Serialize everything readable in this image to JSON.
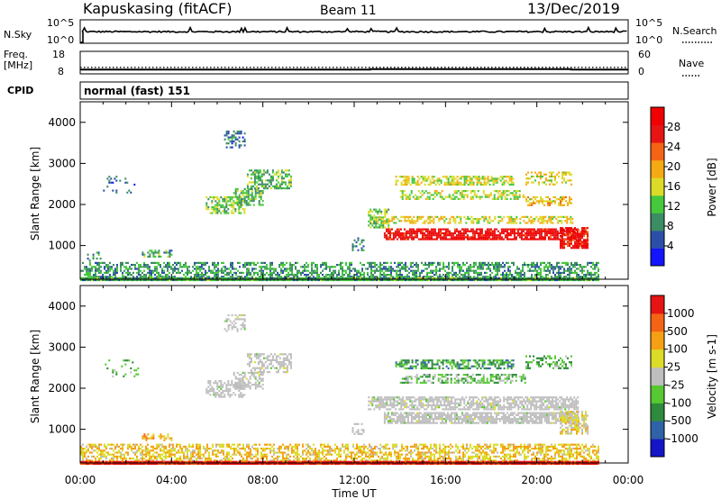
{
  "header": {
    "station": "Kapuskasing (fitACF)",
    "beam": "Beam 11",
    "date": "13/Dec/2019"
  },
  "noise_panel": {
    "left_label": "N.Sky",
    "right_label": "N.Search",
    "left_ticks": [
      "10^5",
      "10^0"
    ],
    "right_ticks": [
      "10^5",
      "10^0"
    ]
  },
  "freq_panel": {
    "left_label_top": "Freq.",
    "left_label_unit": "[MHz]",
    "right_label": "Nave",
    "left_ticks": [
      "18",
      "8"
    ],
    "right_ticks": [
      "60",
      "0"
    ],
    "freq_mhz": [
      [
        0,
        10.6
      ],
      [
        12.7,
        10.6
      ],
      [
        12.7,
        10.9
      ],
      [
        21.5,
        10.9
      ],
      [
        21.5,
        10.6
      ],
      [
        24,
        10.6
      ]
    ],
    "nave": [
      [
        0,
        24
      ],
      [
        24,
        24
      ]
    ]
  },
  "cpid": {
    "label": "CPID",
    "mode": "normal (fast) 151"
  },
  "time_axis": {
    "label": "Time UT",
    "ticks": [
      "00:00",
      "04:00",
      "08:00",
      "12:00",
      "16:00",
      "20:00",
      "00:00"
    ]
  },
  "colors": {
    "power": [
      "#1414ff",
      "#2b4fa8",
      "#3c8c64",
      "#46c83c",
      "#dcdc28",
      "#f5aa14",
      "#f56414",
      "#e61414",
      "#f00000"
    ],
    "velocity": [
      "#1414c8",
      "#2f62a6",
      "#2e8a3c",
      "#55c832",
      "#bebebe",
      "#dcdc28",
      "#f5a014",
      "#f56414",
      "#e61414"
    ],
    "ground_scatter": "#bebebe"
  },
  "chart_data": [
    {
      "type": "heatmap",
      "title": "Power",
      "ylabel": "Slant Range [km]",
      "xlabel": "Time UT",
      "xlim": [
        0,
        24
      ],
      "ylim": [
        180,
        4500
      ],
      "yticks": [
        1000,
        2000,
        3000,
        4000
      ],
      "colorbar": {
        "label": "Power [dB]",
        "ticks": [
          "28",
          "24",
          "20",
          "16",
          "12",
          "8",
          "4"
        ],
        "range": [
          0,
          30
        ]
      },
      "scatter_regions": [
        {
          "t0": 0.0,
          "t1": 22.7,
          "r0": 180,
          "r1": 600,
          "value": 9,
          "density": 0.55
        },
        {
          "t0": 0.0,
          "t1": 22.7,
          "r0": 180,
          "r1": 230,
          "value": 10,
          "density": 1.0
        },
        {
          "t0": 0.3,
          "t1": 1.0,
          "r0": 650,
          "r1": 850,
          "value": 8,
          "density": 0.3
        },
        {
          "t0": 2.7,
          "t1": 4.0,
          "r0": 740,
          "r1": 900,
          "value": 10,
          "density": 0.5
        },
        {
          "t0": 1.0,
          "t1": 2.5,
          "r0": 2300,
          "r1": 2700,
          "value": 6,
          "density": 0.1
        },
        {
          "t0": 5.5,
          "t1": 7.2,
          "r0": 1800,
          "r1": 2200,
          "value": 12,
          "density": 0.6
        },
        {
          "t0": 6.7,
          "t1": 8.0,
          "r0": 2000,
          "r1": 2400,
          "value": 11,
          "density": 0.55
        },
        {
          "t0": 7.3,
          "t1": 9.2,
          "r0": 2400,
          "r1": 2850,
          "value": 11,
          "density": 0.55
        },
        {
          "t0": 6.3,
          "t1": 7.2,
          "r0": 3400,
          "r1": 3800,
          "value": 7,
          "density": 0.4
        },
        {
          "t0": 11.9,
          "t1": 12.4,
          "r0": 900,
          "r1": 1200,
          "value": 7,
          "density": 0.3
        },
        {
          "t0": 12.6,
          "t1": 13.5,
          "r0": 1450,
          "r1": 1900,
          "value": 12,
          "density": 0.65
        },
        {
          "t0": 13.0,
          "t1": 21.6,
          "r0": 1550,
          "r1": 1720,
          "value": 16,
          "density": 0.55
        },
        {
          "t0": 13.3,
          "t1": 21.8,
          "r0": 1150,
          "r1": 1420,
          "value": 27,
          "density": 0.8
        },
        {
          "t0": 21.0,
          "t1": 22.2,
          "r0": 950,
          "r1": 1450,
          "value": 26,
          "density": 0.75
        },
        {
          "t0": 13.8,
          "t1": 19.0,
          "r0": 2500,
          "r1": 2700,
          "value": 15,
          "density": 0.6
        },
        {
          "t0": 14.0,
          "t1": 19.5,
          "r0": 2150,
          "r1": 2350,
          "value": 14,
          "density": 0.5
        },
        {
          "t0": 19.5,
          "t1": 21.5,
          "r0": 2000,
          "r1": 2200,
          "value": 17,
          "density": 0.5
        },
        {
          "t0": 19.5,
          "t1": 21.5,
          "r0": 2500,
          "r1": 2800,
          "value": 16,
          "density": 0.4
        }
      ]
    },
    {
      "type": "heatmap",
      "title": "Velocity",
      "ylabel": "Slant Range [km]",
      "xlabel": "Time UT",
      "xlim": [
        0,
        24
      ],
      "ylim": [
        180,
        4500
      ],
      "yticks": [
        1000,
        2000,
        3000,
        4000
      ],
      "colorbar": {
        "label": "Velocity [m s-1]",
        "ticks": [
          "1000",
          "500",
          "100",
          "25",
          "-25",
          "-100",
          "-500",
          "-1000"
        ],
        "range": [
          -1000,
          1000
        ]
      },
      "scatter_regions": [
        {
          "t0": 0.0,
          "t1": 22.7,
          "r0": 180,
          "r1": 650,
          "value": 300,
          "density": 0.55
        },
        {
          "t0": 0.0,
          "t1": 22.7,
          "r0": 180,
          "r1": 230,
          "value": 900,
          "density": 1.0
        },
        {
          "t0": 2.7,
          "t1": 4.0,
          "r0": 740,
          "r1": 900,
          "value": 400,
          "density": 0.5
        },
        {
          "t0": 1.0,
          "t1": 2.5,
          "r0": 2300,
          "r1": 2700,
          "value": -200,
          "density": 0.1
        },
        {
          "t0": 5.5,
          "t1": 7.2,
          "r0": 1800,
          "r1": 2200,
          "value": 0,
          "density": 0.6
        },
        {
          "t0": 6.7,
          "t1": 8.0,
          "r0": 2000,
          "r1": 2400,
          "value": 0,
          "density": 0.55
        },
        {
          "t0": 7.3,
          "t1": 9.2,
          "r0": 2400,
          "r1": 2850,
          "value": 0,
          "density": 0.55
        },
        {
          "t0": 6.3,
          "t1": 7.2,
          "r0": 3400,
          "r1": 3800,
          "value": 0,
          "density": 0.4
        },
        {
          "t0": 11.9,
          "t1": 12.4,
          "r0": 900,
          "r1": 1200,
          "value": 0,
          "density": 0.3
        },
        {
          "t0": 12.6,
          "t1": 21.8,
          "r0": 1500,
          "r1": 1800,
          "value": 0,
          "density": 0.7
        },
        {
          "t0": 13.3,
          "t1": 21.8,
          "r0": 1150,
          "r1": 1420,
          "value": 0,
          "density": 0.8
        },
        {
          "t0": 21.0,
          "t1": 22.2,
          "r0": 900,
          "r1": 1450,
          "value": 150,
          "density": 0.6
        },
        {
          "t0": 13.8,
          "t1": 19.0,
          "r0": 2500,
          "r1": 2700,
          "value": -400,
          "density": 0.6
        },
        {
          "t0": 14.0,
          "t1": 19.5,
          "r0": 2150,
          "r1": 2350,
          "value": -250,
          "density": 0.5
        },
        {
          "t0": 19.5,
          "t1": 21.5,
          "r0": 2500,
          "r1": 2800,
          "value": -300,
          "density": 0.4
        }
      ]
    }
  ]
}
